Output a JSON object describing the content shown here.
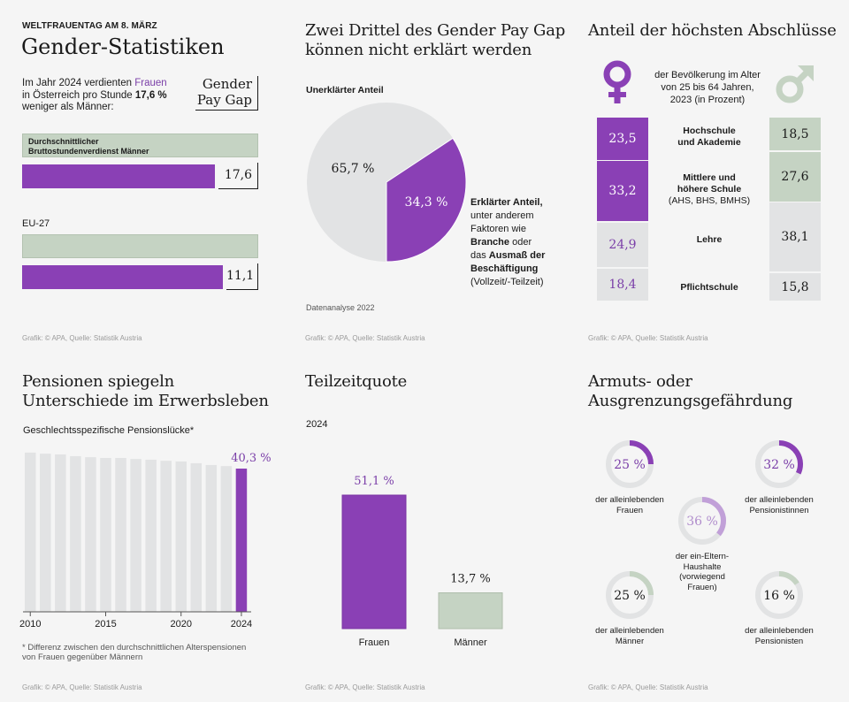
{
  "colors": {
    "purple": "#8a40b5",
    "purple_light": "#c1a0d8",
    "sage": "#c5d3c3",
    "grey": "#e2e3e4",
    "background": "#f5f5f5",
    "text": "#1a1a1a",
    "credit": "#9a9a9a"
  },
  "credit": "Grafik: © APA, Quelle: Statistik Austria",
  "paygap": {
    "kicker": "WELTFRAUENTAG AM 8. MÄRZ",
    "title": "Gender-Statistiken",
    "intro_1": "Im Jahr 2024 verdienten ",
    "intro_highlight": "Frauen",
    "intro_2": "in Österreich pro Stunde ",
    "intro_value": "17,6 %",
    "intro_3": "weniger als Männer:",
    "badge_line1": "Gender",
    "badge_line2": "Pay Gap",
    "men_bar_label_1": "Durchschnittlicher",
    "men_bar_label_2": "Bruttostundenverdienst Männer",
    "eu_label": "EU-27"
  },
  "pie": {
    "title_1": "Zwei Drittel des Gender Pay Gap",
    "title_2": "können nicht erklärt werden",
    "unexplained_label": "Unerklärter Anteil",
    "explained_label_bold": "Erklärter Anteil,",
    "explained_lines": [
      "unter anderem",
      "Faktoren wie"
    ],
    "explained_branche": "Branche",
    "explained_oder": " oder",
    "explained_das": "das ",
    "explained_ausmass": "Ausmaß der",
    "explained_beschaeftigung": "Beschäftigung",
    "explained_paren": "(Vollzeit/-Teilzeit)",
    "footnote": "Datenanalyse 2022"
  },
  "education": {
    "title": "Anteil der höchsten Abschlüsse",
    "subtitle_1": "der Bevölkerung im Alter",
    "subtitle_2": "von 25 bis 64 Jahren,",
    "subtitle_3": "2023 (in Prozent)",
    "female_icon": "female-symbol",
    "male_icon": "male-symbol",
    "rows": [
      {
        "label_1": "Hochschule",
        "label_2": "und Akademie",
        "label_3": "",
        "female": 23.5,
        "female_text": "23,5",
        "male": 18.5,
        "male_text": "18,5"
      },
      {
        "label_1": "Mittlere und",
        "label_2": "höhere Schule",
        "label_3": "(AHS, BHS, BMHS)",
        "female": 33.2,
        "female_text": "33,2",
        "male": 27.6,
        "male_text": "27,6"
      },
      {
        "label_1": "Lehre",
        "label_2": "",
        "label_3": "",
        "female": 24.9,
        "female_text": "24,9",
        "male": 38.1,
        "male_text": "38,1"
      },
      {
        "label_1": "Pflichtschule",
        "label_2": "",
        "label_3": "",
        "female": 18.4,
        "female_text": "18,4",
        "male": 15.8,
        "male_text": "15,8"
      }
    ]
  },
  "pension": {
    "title_1": "Pensionen spiegeln",
    "title_2": "Unterschiede im Erwerbsleben",
    "subtitle": "Geschlechtsspezifische Pensionslücke*",
    "footnote_1": "* Differenz zwischen den durchschnittlichen Alterspensionen",
    "footnote_2": "von Frauen gegenüber Männern"
  },
  "parttime": {
    "title": "Teilzeitquote",
    "year": "2024"
  },
  "poverty": {
    "title_1": "Armuts- oder",
    "title_2": "Ausgrenzungsgefährdung",
    "items": [
      {
        "value": 25,
        "text": "25 %",
        "label_1": "der alleinlebenden",
        "label_2": "Frauen",
        "label_3": "",
        "label_4": "",
        "tone": "purple"
      },
      {
        "value": 32,
        "text": "32 %",
        "label_1": "der alleinlebenden",
        "label_2": "Pensionistinnen",
        "label_3": "",
        "label_4": "",
        "tone": "purple"
      },
      {
        "value": 36,
        "text": "36 %",
        "label_1": "der ein-Eltern-",
        "label_2": "Haushalte",
        "label_3": "(vorwiegend",
        "label_4": "Frauen)",
        "tone": "light"
      },
      {
        "value": 25,
        "text": "25 %",
        "label_1": "der alleinlebenden",
        "label_2": "Männer",
        "label_3": "",
        "label_4": "",
        "tone": "sage"
      },
      {
        "value": 16,
        "text": "16 %",
        "label_1": "der alleinlebenden",
        "label_2": "Pensionisten",
        "label_3": "",
        "label_4": "",
        "tone": "sage"
      }
    ]
  },
  "chart_data": [
    {
      "id": "paygap",
      "type": "bar",
      "orientation": "horizontal",
      "title": "Gender Pay Gap",
      "categories": [
        "Österreich",
        "EU-27"
      ],
      "series": [
        {
          "name": "Durchschnittlicher Bruttostundenverdienst Männer",
          "values": [
            100,
            100
          ]
        },
        {
          "name": "Gender Pay Gap (%)",
          "values": [
            17.6,
            11.1
          ]
        }
      ],
      "value_labels": [
        "17,6",
        "11,1"
      ],
      "unit": "%"
    },
    {
      "id": "pie",
      "type": "pie",
      "title": "Zwei Drittel des Gender Pay Gap können nicht erklärt werden",
      "categories": [
        "Unerklärter Anteil",
        "Erklärter Anteil"
      ],
      "values": [
        65.7,
        34.3
      ],
      "value_labels": [
        "65,7 %",
        "34,3 %"
      ]
    },
    {
      "id": "education",
      "type": "bar",
      "stacked": true,
      "title": "Anteil der höchsten Abschlüsse",
      "categories": [
        "Hochschule und Akademie",
        "Mittlere und höhere Schule (AHS, BHS, BMHS)",
        "Lehre",
        "Pflichtschule"
      ],
      "series": [
        {
          "name": "Frauen",
          "values": [
            23.5,
            33.2,
            24.9,
            18.4
          ]
        },
        {
          "name": "Männer",
          "values": [
            18.5,
            27.6,
            38.1,
            15.8
          ]
        }
      ],
      "unit": "%"
    },
    {
      "id": "pension",
      "type": "bar",
      "title": "Geschlechtsspezifische Pensionslücke*",
      "x": [
        2010,
        2011,
        2012,
        2013,
        2014,
        2015,
        2016,
        2017,
        2018,
        2019,
        2020,
        2021,
        2022,
        2023,
        2024
      ],
      "values": [
        44.8,
        44.5,
        44.3,
        43.8,
        43.5,
        43.3,
        43.3,
        43.0,
        42.8,
        42.5,
        42.3,
        41.8,
        41.3,
        41.0,
        40.3
      ],
      "xticks": [
        "2010",
        "2015",
        "2020",
        "2024"
      ],
      "highlight_label": "40,3 %",
      "ylim": [
        0,
        45
      ],
      "unit": "%"
    },
    {
      "id": "parttime",
      "type": "bar",
      "title": "Teilzeitquote 2024",
      "categories": [
        "Frauen",
        "Männer"
      ],
      "values": [
        51.1,
        13.7
      ],
      "value_labels": [
        "51,1 %",
        "13,7 %"
      ],
      "unit": "%"
    },
    {
      "id": "poverty",
      "type": "pie",
      "variant": "donut",
      "title": "Armuts- oder Ausgrenzungsgefährdung",
      "categories": [
        "alleinlebende Frauen",
        "alleinlebende Pensionistinnen",
        "ein-Eltern-Haushalte",
        "alleinlebende Männer",
        "alleinlebende Pensionisten"
      ],
      "values": [
        25,
        32,
        36,
        25,
        16
      ],
      "unit": "%"
    }
  ]
}
